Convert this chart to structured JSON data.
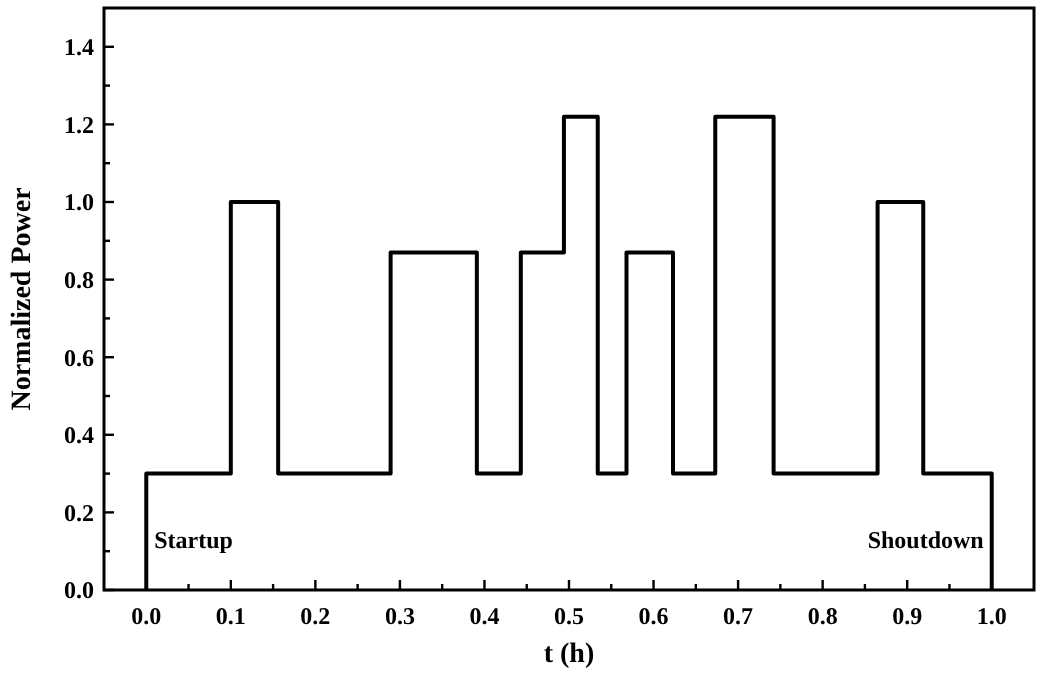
{
  "chart_data": {
    "type": "step",
    "xlabel": "t (h)",
    "ylabel": "Normalized Power",
    "xlim": [
      -0.05,
      1.05
    ],
    "ylim": [
      0,
      1.5
    ],
    "xticks": [
      {
        "value": 0,
        "label": "0.0"
      },
      {
        "value": 0.05,
        "label": null
      },
      {
        "value": 0.1,
        "label": "0.1"
      },
      {
        "value": 0.15,
        "label": null
      },
      {
        "value": 0.2,
        "label": "0.2"
      },
      {
        "value": 0.25,
        "label": null
      },
      {
        "value": 0.3,
        "label": "0.3"
      },
      {
        "value": 0.35,
        "label": null
      },
      {
        "value": 0.4,
        "label": "0.4"
      },
      {
        "value": 0.45,
        "label": null
      },
      {
        "value": 0.5,
        "label": "0.5"
      },
      {
        "value": 0.55,
        "label": null
      },
      {
        "value": 0.6,
        "label": "0.6"
      },
      {
        "value": 0.65,
        "label": null
      },
      {
        "value": 0.7,
        "label": "0.7"
      },
      {
        "value": 0.75,
        "label": null
      },
      {
        "value": 0.8,
        "label": "0.8"
      },
      {
        "value": 0.85,
        "label": null
      },
      {
        "value": 0.9,
        "label": "0.9"
      },
      {
        "value": 0.95,
        "label": null
      },
      {
        "value": 1,
        "label": "1.0"
      }
    ],
    "yticks": [
      {
        "value": 0,
        "label": "0.0"
      },
      {
        "value": 0.1,
        "label": null
      },
      {
        "value": 0.2,
        "label": "0.2"
      },
      {
        "value": 0.3,
        "label": null
      },
      {
        "value": 0.4,
        "label": "0.4"
      },
      {
        "value": 0.5,
        "label": null
      },
      {
        "value": 0.6,
        "label": "0.6"
      },
      {
        "value": 0.7,
        "label": null
      },
      {
        "value": 0.8,
        "label": "0.8"
      },
      {
        "value": 0.9,
        "label": null
      },
      {
        "value": 1,
        "label": "1.0"
      },
      {
        "value": 1.1,
        "label": null
      },
      {
        "value": 1.2,
        "label": "1.2"
      },
      {
        "value": 1.3,
        "label": null
      },
      {
        "value": 1.4,
        "label": "1.4"
      }
    ],
    "grid": false,
    "marker": "none",
    "line_style": "solid",
    "series": [
      {
        "color": "#000000",
        "x": [
          0,
          0,
          0.1,
          0.156,
          0.289,
          0.391,
          0.443,
          0.494,
          0.534,
          0.568,
          0.623,
          0.673,
          0.742,
          0.865,
          0.919,
          1.0,
          1.0
        ],
        "values": [
          0,
          0.3,
          1.0,
          0.3,
          0.87,
          0.3,
          0.87,
          1.22,
          0.3,
          0.87,
          0.3,
          1.22,
          0.3,
          1.0,
          0.3,
          0.3,
          0
        ]
      }
    ],
    "annotations": [
      {
        "text": "Startup",
        "x": 0,
        "y": 0.13
      },
      {
        "text": "Shoutdown",
        "x": 1.0,
        "y": 0.13
      }
    ]
  }
}
